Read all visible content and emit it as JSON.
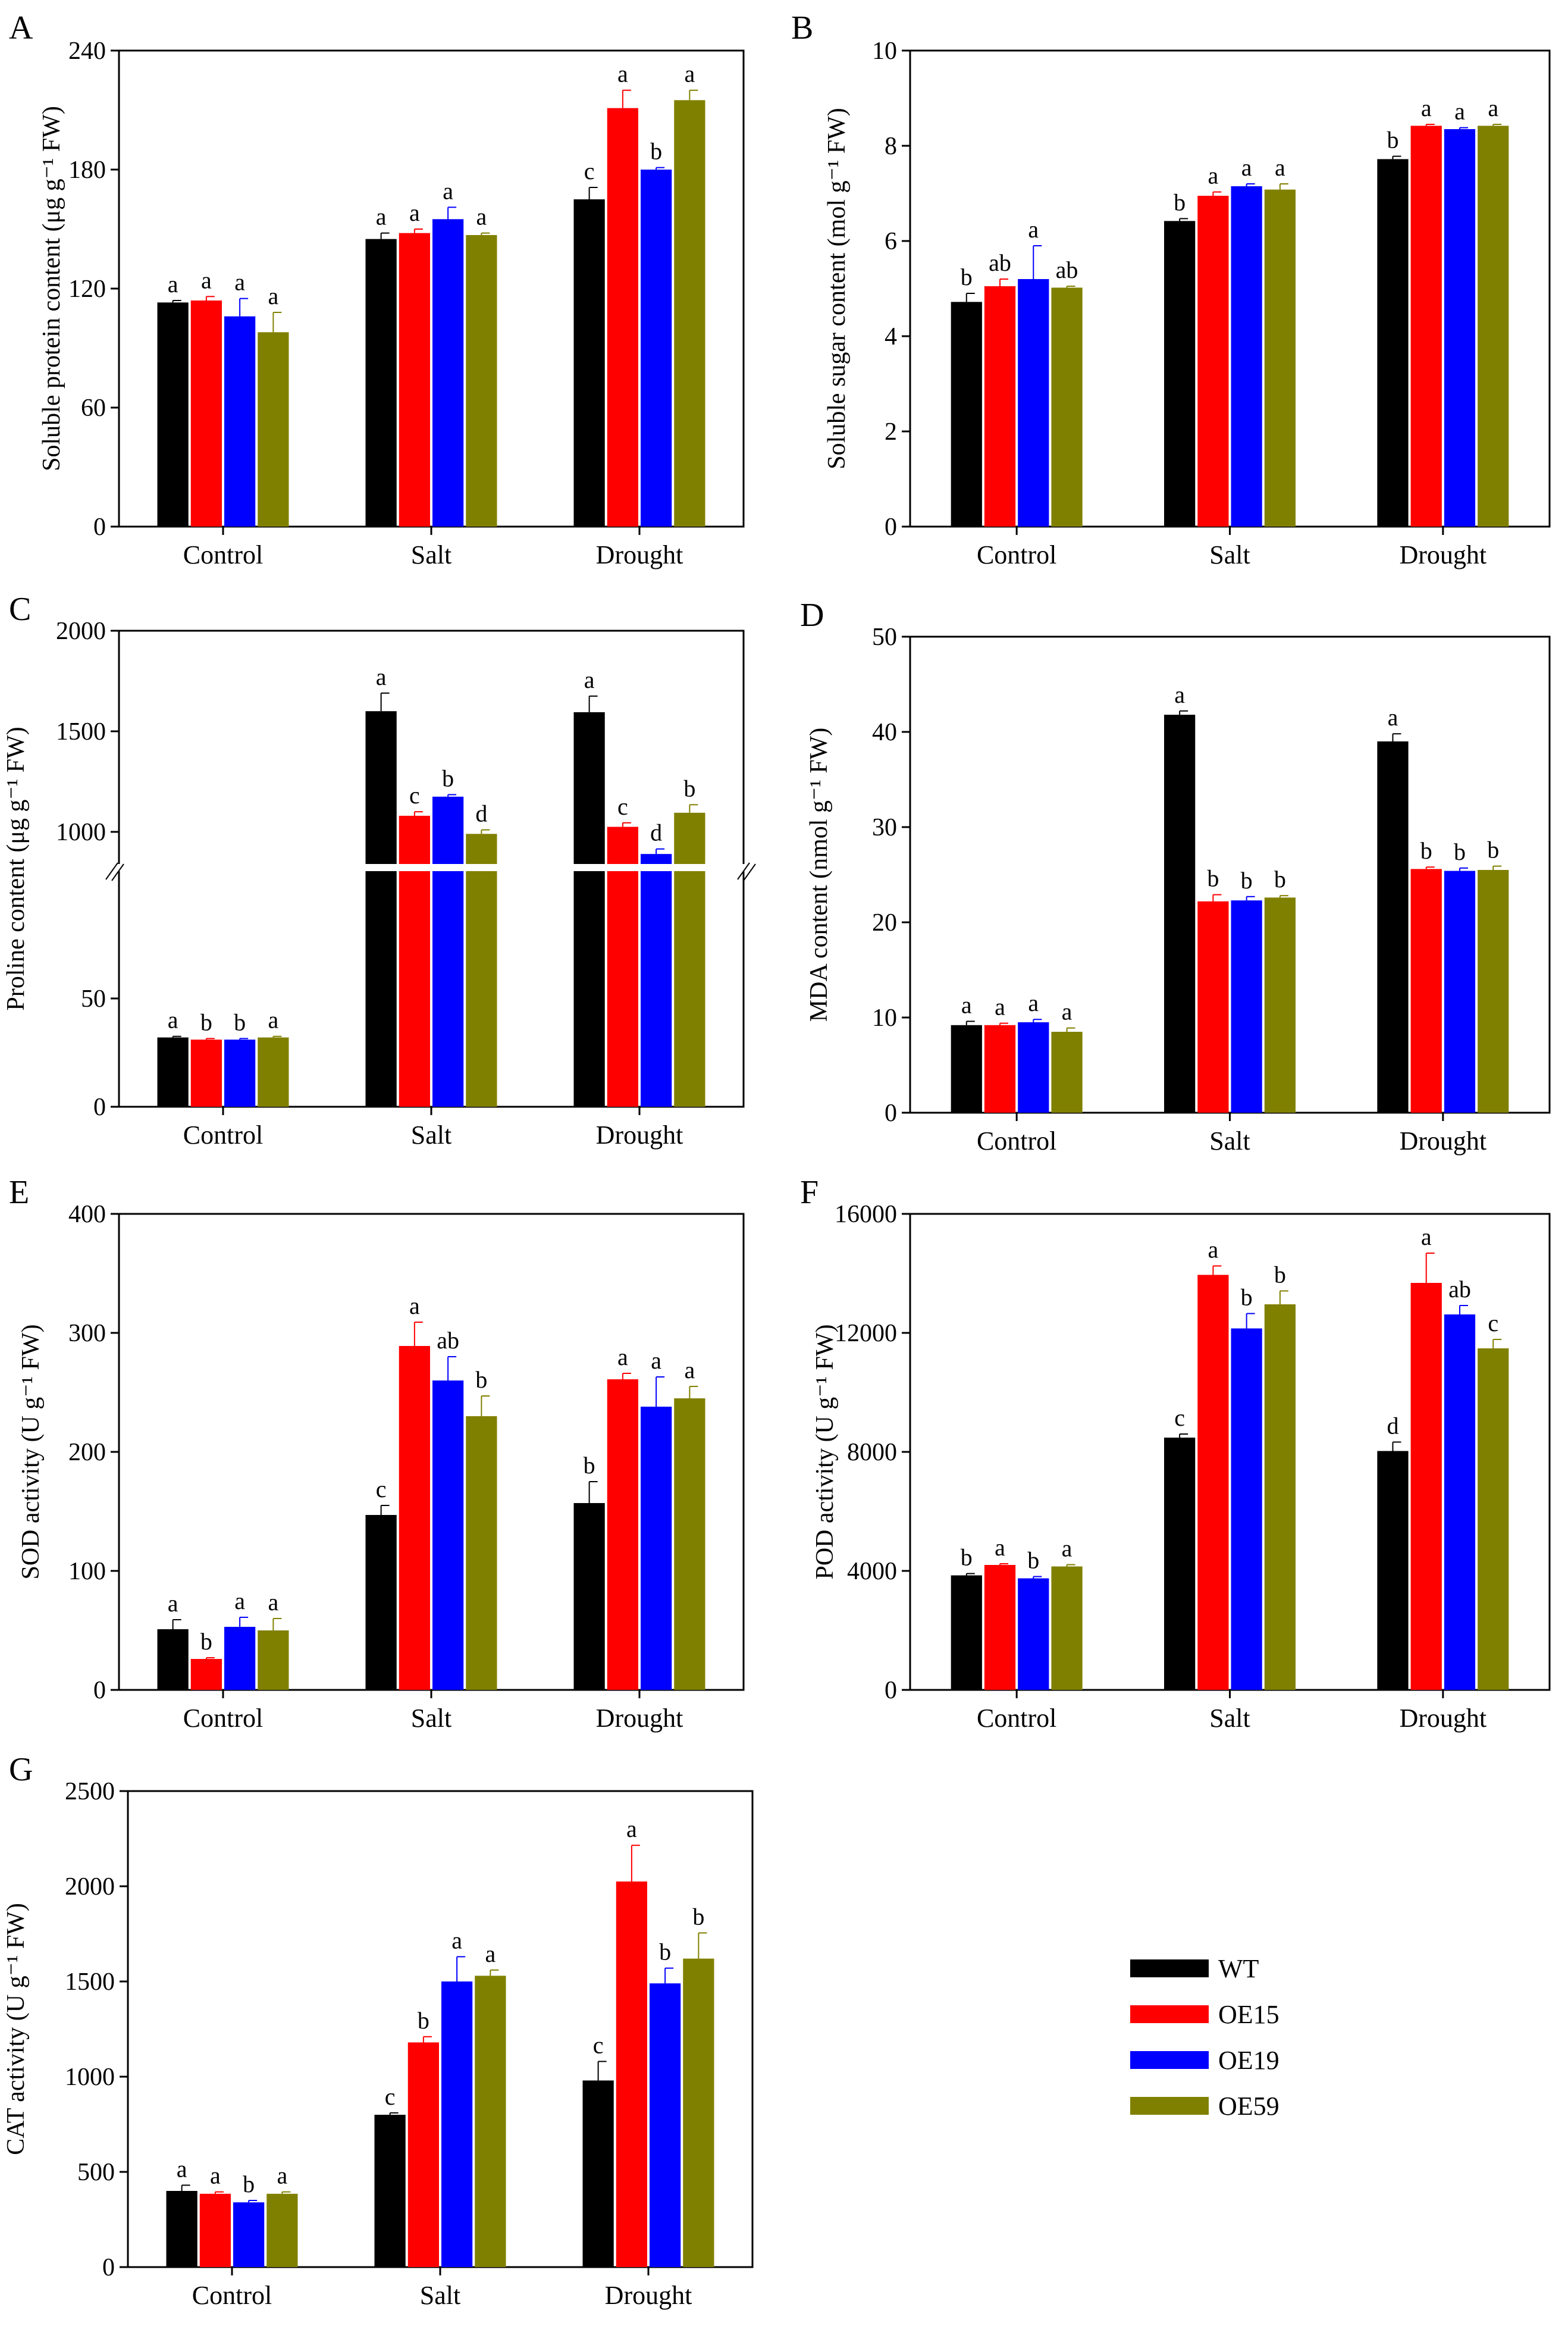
{
  "legend": {
    "items": [
      {
        "label": "WT",
        "color": "#000000"
      },
      {
        "label": "OE15",
        "color": "#ff0000"
      },
      {
        "label": "OE19",
        "color": "#0000ff"
      },
      {
        "label": "OE59",
        "color": "#808000"
      }
    ]
  },
  "chart_data": [
    {
      "panel": "A",
      "type": "bar",
      "ylabel": "Soluble protein content (μg g⁻¹ FW)",
      "ylim": [
        0,
        240
      ],
      "yticks": [
        0,
        60,
        120,
        180,
        240
      ],
      "categories": [
        "Control",
        "Salt",
        "Drought"
      ],
      "series": [
        {
          "name": "WT",
          "values": [
            113,
            145,
            165
          ],
          "errors": [
            1,
            3,
            6
          ],
          "labels": [
            "a",
            "a",
            "c"
          ]
        },
        {
          "name": "OE15",
          "values": [
            114,
            148,
            211
          ],
          "errors": [
            2,
            2,
            9
          ],
          "labels": [
            "a",
            "a",
            "a"
          ]
        },
        {
          "name": "OE19",
          "values": [
            106,
            155,
            180
          ],
          "errors": [
            9,
            6,
            1
          ],
          "labels": [
            "a",
            "a",
            "b"
          ]
        },
        {
          "name": "OE59",
          "values": [
            98,
            147,
            215
          ],
          "errors": [
            10,
            1,
            5
          ],
          "labels": [
            "a",
            "a",
            "a"
          ]
        }
      ]
    },
    {
      "panel": "B",
      "type": "bar",
      "ylabel": "Soluble sugar content  (mol g⁻¹ FW)",
      "ylim": [
        0,
        10
      ],
      "yticks": [
        0,
        2,
        4,
        6,
        8,
        10
      ],
      "categories": [
        "Control",
        "Salt",
        "Drought"
      ],
      "series": [
        {
          "name": "WT",
          "values": [
            4.72,
            6.42,
            7.72
          ],
          "errors": [
            0.18,
            0.05,
            0.06
          ],
          "labels": [
            "b",
            "b",
            "b"
          ]
        },
        {
          "name": "OE15",
          "values": [
            5.05,
            6.95,
            8.42
          ],
          "errors": [
            0.15,
            0.08,
            0.03
          ],
          "labels": [
            "ab",
            "a",
            "a"
          ]
        },
        {
          "name": "OE19",
          "values": [
            5.2,
            7.15,
            8.35
          ],
          "errors": [
            0.7,
            0.05,
            0.03
          ],
          "labels": [
            "a",
            "a",
            "a"
          ]
        },
        {
          "name": "OE59",
          "values": [
            5.02,
            7.08,
            8.42
          ],
          "errors": [
            0.03,
            0.12,
            0.03
          ],
          "labels": [
            "ab",
            "a",
            "a"
          ]
        }
      ]
    },
    {
      "panel": "C",
      "type": "bar",
      "broken_axis": true,
      "ylabel": "Proline content (μg g⁻¹ FW)",
      "yticks": [
        0,
        50,
        1000,
        1500,
        2000
      ],
      "axis_break": "between 80 and 860",
      "categories": [
        "Control",
        "Salt",
        "Drought"
      ],
      "series": [
        {
          "name": "WT",
          "values": [
            32,
            1600,
            1595
          ],
          "errors": [
            0.5,
            90,
            80
          ],
          "labels": [
            "a",
            "a",
            "a"
          ]
        },
        {
          "name": "OE15",
          "values": [
            31,
            1080,
            1025
          ],
          "errors": [
            0.5,
            20,
            20
          ],
          "labels": [
            "b",
            "c",
            "c"
          ]
        },
        {
          "name": "OE19",
          "values": [
            31,
            1175,
            890
          ],
          "errors": [
            0.5,
            10,
            25
          ],
          "labels": [
            "b",
            "b",
            "d"
          ]
        },
        {
          "name": "OE59",
          "values": [
            32,
            990,
            1095
          ],
          "errors": [
            0.5,
            20,
            40
          ],
          "labels": [
            "a",
            "d",
            "b"
          ]
        }
      ]
    },
    {
      "panel": "D",
      "type": "bar",
      "ylabel": "MDA content (nmol g⁻¹ FW)",
      "ylim": [
        0,
        50
      ],
      "yticks": [
        0,
        10,
        20,
        30,
        40,
        50
      ],
      "categories": [
        "Control",
        "Salt",
        "Drought"
      ],
      "series": [
        {
          "name": "WT",
          "values": [
            9.2,
            41.8,
            39.0
          ],
          "errors": [
            0.4,
            0.4,
            0.8
          ],
          "labels": [
            "a",
            "a",
            "a"
          ]
        },
        {
          "name": "OE15",
          "values": [
            9.2,
            22.2,
            25.6
          ],
          "errors": [
            0.2,
            0.7,
            0.2
          ],
          "labels": [
            "a",
            "b",
            "b"
          ]
        },
        {
          "name": "OE19",
          "values": [
            9.5,
            22.3,
            25.4
          ],
          "errors": [
            0.3,
            0.4,
            0.3
          ],
          "labels": [
            "a",
            "b",
            "b"
          ]
        },
        {
          "name": "OE59",
          "values": [
            8.5,
            22.6,
            25.5
          ],
          "errors": [
            0.4,
            0.2,
            0.4
          ],
          "labels": [
            "a",
            "b",
            "b"
          ]
        }
      ]
    },
    {
      "panel": "E",
      "type": "bar",
      "ylabel": "SOD activity (U g⁻¹ FW)",
      "ylim": [
        0,
        400
      ],
      "yticks": [
        0,
        100,
        200,
        300,
        400
      ],
      "categories": [
        "Control",
        "Salt",
        "Drought"
      ],
      "series": [
        {
          "name": "WT",
          "values": [
            51,
            147,
            157
          ],
          "errors": [
            8,
            8,
            18
          ],
          "labels": [
            "a",
            "c",
            "b"
          ]
        },
        {
          "name": "OE15",
          "values": [
            26,
            289,
            261
          ],
          "errors": [
            1,
            20,
            5
          ],
          "labels": [
            "b",
            "a",
            "a"
          ]
        },
        {
          "name": "OE19",
          "values": [
            53,
            260,
            238
          ],
          "errors": [
            8,
            20,
            25
          ],
          "labels": [
            "a",
            "ab",
            "a"
          ]
        },
        {
          "name": "OE59",
          "values": [
            50,
            230,
            245
          ],
          "errors": [
            10,
            17,
            10
          ],
          "labels": [
            "a",
            "b",
            "a"
          ]
        }
      ]
    },
    {
      "panel": "F",
      "type": "bar",
      "ylabel": "POD activity (U g⁻¹ FW)",
      "ylim": [
        0,
        16000
      ],
      "yticks": [
        0,
        4000,
        8000,
        12000,
        16000
      ],
      "categories": [
        "Control",
        "Salt",
        "Drought"
      ],
      "series": [
        {
          "name": "WT",
          "values": [
            3850,
            8480,
            8030
          ],
          "errors": [
            60,
            120,
            300
          ],
          "labels": [
            "b",
            "c",
            "d"
          ]
        },
        {
          "name": "OE15",
          "values": [
            4200,
            13950,
            13680
          ],
          "errors": [
            40,
            300,
            1000
          ],
          "labels": [
            "a",
            "a",
            "a"
          ]
        },
        {
          "name": "OE19",
          "values": [
            3750,
            12150,
            12620
          ],
          "errors": [
            60,
            500,
            300
          ],
          "labels": [
            "b",
            "b",
            "ab"
          ]
        },
        {
          "name": "OE59",
          "values": [
            4150,
            12960,
            11480
          ],
          "errors": [
            60,
            450,
            300
          ],
          "labels": [
            "a",
            "b",
            "c"
          ]
        }
      ]
    },
    {
      "panel": "G",
      "type": "bar",
      "ylabel": "CAT activity (U g⁻¹ FW)",
      "ylim": [
        0,
        2500
      ],
      "yticks": [
        0,
        500,
        1000,
        1500,
        2000,
        2500
      ],
      "categories": [
        "Control",
        "Salt",
        "Drought"
      ],
      "series": [
        {
          "name": "WT",
          "values": [
            400,
            800,
            980
          ],
          "errors": [
            30,
            10,
            100
          ],
          "labels": [
            "a",
            "c",
            "c"
          ]
        },
        {
          "name": "OE15",
          "values": [
            385,
            1180,
            2025
          ],
          "errors": [
            10,
            30,
            190
          ],
          "labels": [
            "a",
            "b",
            "a"
          ]
        },
        {
          "name": "OE19",
          "values": [
            340,
            1500,
            1490
          ],
          "errors": [
            10,
            130,
            80
          ],
          "labels": [
            "b",
            "a",
            "b"
          ]
        },
        {
          "name": "OE59",
          "values": [
            385,
            1530,
            1620
          ],
          "errors": [
            10,
            30,
            135
          ],
          "labels": [
            "a",
            "a",
            "b"
          ]
        }
      ]
    }
  ]
}
